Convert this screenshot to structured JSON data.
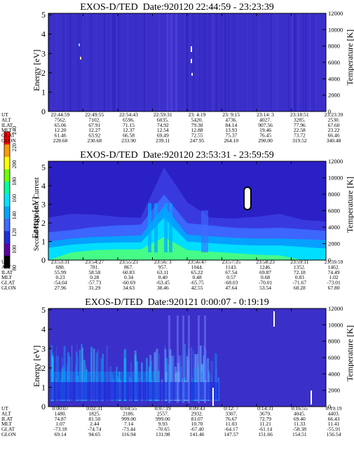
{
  "colors": {
    "background": "#ffffff",
    "spectrogram_base": "#3b2fc9",
    "spectrogram_cyan": "#00e4ff",
    "spectrogram_green": "#4cff7a",
    "artifact": "#ffffff"
  },
  "colorbar": {
    "label": "Second Harmonic Current",
    "ticks": [
      "80",
      "100",
      "120",
      "140",
      "160",
      "180",
      "200",
      "220",
      "240"
    ],
    "colors": [
      "#000000",
      "#5a00a8",
      "#1e2ddd",
      "#3d6bff",
      "#00a6ff",
      "#00e4ff",
      "#00ff9c",
      "#6cff00",
      "#ffff00",
      "#ff9a00",
      "#ff0000"
    ]
  },
  "row_labels": [
    "UT",
    "ALT",
    "ILAT",
    "MLT",
    "GLAT",
    "GLON"
  ],
  "panels": [
    {
      "title_left": "EXOS-D/TED",
      "title_right": "Date:920120  22:44:59 - 23:23:39",
      "y_left_label": "Energy [eV]",
      "y_left_ticks": [
        "0",
        "1",
        "2",
        "3",
        "4",
        "5"
      ],
      "y_right_label": "Temperature [K]",
      "y_right_ticks": [
        "0",
        "2000",
        "4000",
        "6000",
        "8000",
        "10000",
        "12000"
      ],
      "columns": [
        [
          "22:44:59",
          "7562.",
          "65.06",
          "12.20",
          "61.46",
          "228.60"
        ],
        [
          "22:49:55",
          "7102.",
          "67.91",
          "12.27",
          "63.92",
          "230.68"
        ],
        [
          "22:54:43",
          "6596.",
          "71.15",
          "12.37",
          "66.58",
          "233.90"
        ],
        [
          "22:59:31",
          "6035.",
          "74.92",
          "12.54",
          "69.49",
          "239.11"
        ],
        [
          "23: 4:19",
          "5420.",
          "79.30",
          "12.88",
          "72.55",
          "247.95"
        ],
        [
          "23: 9:15",
          "4736.",
          "84.14",
          "13.93",
          "75.37",
          "264.10"
        ],
        [
          "23:14: 3",
          "4027.",
          "907.56",
          "19.46",
          "76.45",
          "290.00"
        ],
        [
          "23:18:51",
          "3285.",
          "77.96",
          "22.58",
          "73.72",
          "319.52"
        ],
        [
          "23:23:39",
          "2530.",
          "67.60",
          "23.22",
          "66.46",
          "340.48"
        ]
      ]
    },
    {
      "title_left": "EXOS-D/TED",
      "title_right": "Date:920120  23:53:31 - 23:59:59",
      "y_left_label": "Energy [eV]",
      "y_left_ticks": [
        "0",
        "1",
        "2",
        "3",
        "4",
        "5"
      ],
      "y_right_label": "Temperature [K]",
      "y_right_ticks": [
        "0",
        "2000",
        "4000",
        "6000",
        "8000",
        "10000",
        "12000"
      ],
      "columns": [
        [
          "23:53:31",
          "688.",
          "55.99",
          "0.23",
          "-54.04",
          "27.96"
        ],
        [
          "23:54:27",
          "781.",
          "58.58",
          "0.28",
          "-57.73",
          "31.29"
        ],
        [
          "23:55:23",
          "867.",
          "60.83",
          "0.34",
          "-60.69",
          "34.63"
        ],
        [
          "23:56: 3",
          "957.",
          "63.11",
          "0.40",
          "-63.45",
          "38.46"
        ],
        [
          "23:56:47",
          "1044.",
          "65.22",
          "0.48",
          "-65.75",
          "42.55"
        ],
        [
          "23:57:35",
          "1143.",
          "67.54",
          "0.57",
          "-68.03",
          "47.64"
        ],
        [
          "23:58:23",
          "1246.",
          "69.87",
          "0.68",
          "-70.01",
          "53.54"
        ],
        [
          "23:59:11",
          "1352.",
          "72.18",
          "0.83",
          "-71.67",
          "60.28"
        ],
        [
          "23:59:59",
          "1462.",
          "74.49",
          "1.02",
          "-73.01",
          "67.80"
        ]
      ]
    },
    {
      "title_left": "EXOS-D/TED",
      "title_right": "Date:920121  0:00:07 - 0:19:19",
      "y_left_label": "Energy [eV]",
      "y_left_ticks": [
        "0",
        "1",
        "2",
        "3",
        "4",
        "5"
      ],
      "y_right_label": "Temperature [K]",
      "y_right_ticks": [
        "0",
        "2000",
        "4000",
        "6000",
        "8000",
        "10000",
        "12000"
      ],
      "columns": [
        [
          "0:00:07",
          "1480.",
          "74.87",
          "1.07",
          "-73.18",
          "69.14"
        ],
        [
          "0:02:31",
          "1825.",
          "81.50",
          "2.44",
          "-74.74",
          "94.65"
        ],
        [
          "0:04:55",
          "2186.",
          "999.00",
          "7.14",
          "-73.44",
          "116.94"
        ],
        [
          "0:07:19",
          "2557.",
          "999.00",
          "9.93",
          "-70.65",
          "131.98"
        ],
        [
          "0:09:43",
          "2932.",
          "81.07",
          "10.70",
          "-67.40",
          "141.46"
        ],
        [
          "0:12: 7",
          "3307.",
          "76.67",
          "11.03",
          "-64.17",
          "147.57"
        ],
        [
          "0:14:31",
          "3679.",
          "72.79",
          "11.21",
          "-61.14",
          "151.66"
        ],
        [
          "0:16:55",
          "4045.",
          "69.40",
          "11.33",
          "-58.38",
          "154.51"
        ],
        [
          "0:19:19",
          "4403.",
          "66.43",
          "11.41",
          "-55.91",
          "156.54"
        ]
      ]
    }
  ],
  "chart_data": [
    {
      "type": "heatmap",
      "title": "EXOS-D/TED Date:920120 22:44:59 - 23:23:39",
      "xlabel": "UT",
      "ylabel": "Energy [eV]",
      "y2label": "Temperature [K]",
      "x": [
        "22:44:59",
        "22:49:55",
        "22:54:43",
        "22:59:31",
        "23: 4:19",
        "23: 9:15",
        "23:14: 3",
        "23:18:51",
        "23:23:39"
      ],
      "ylim": [
        0,
        5
      ],
      "y2lim": [
        0,
        12000
      ],
      "zlim": [
        80,
        240
      ]
    },
    {
      "type": "heatmap",
      "title": "EXOS-D/TED Date:920120 23:53:31 - 23:59:59",
      "xlabel": "UT",
      "ylabel": "Energy [eV]",
      "y2label": "Temperature [K]",
      "x": [
        "23:53:31",
        "23:54:27",
        "23:55:23",
        "23:56: 3",
        "23:56:47",
        "23:57:35",
        "23:58:23",
        "23:59:11",
        "23:59:59"
      ],
      "ylim": [
        0,
        5
      ],
      "y2lim": [
        0,
        12000
      ],
      "zlim": [
        80,
        240
      ]
    },
    {
      "type": "heatmap",
      "title": "EXOS-D/TED Date:920121 0:00:07 - 0:19:19",
      "xlabel": "UT",
      "ylabel": "Energy [eV]",
      "y2label": "Temperature [K]",
      "x": [
        "0:00:07",
        "0:02:31",
        "0:04:55",
        "0:07:19",
        "0:09:43",
        "0:12: 7",
        "0:14:31",
        "0:16:55",
        "0:19:19"
      ],
      "ylim": [
        0,
        5
      ],
      "y2lim": [
        0,
        12000
      ],
      "zlim": [
        80,
        240
      ]
    }
  ]
}
